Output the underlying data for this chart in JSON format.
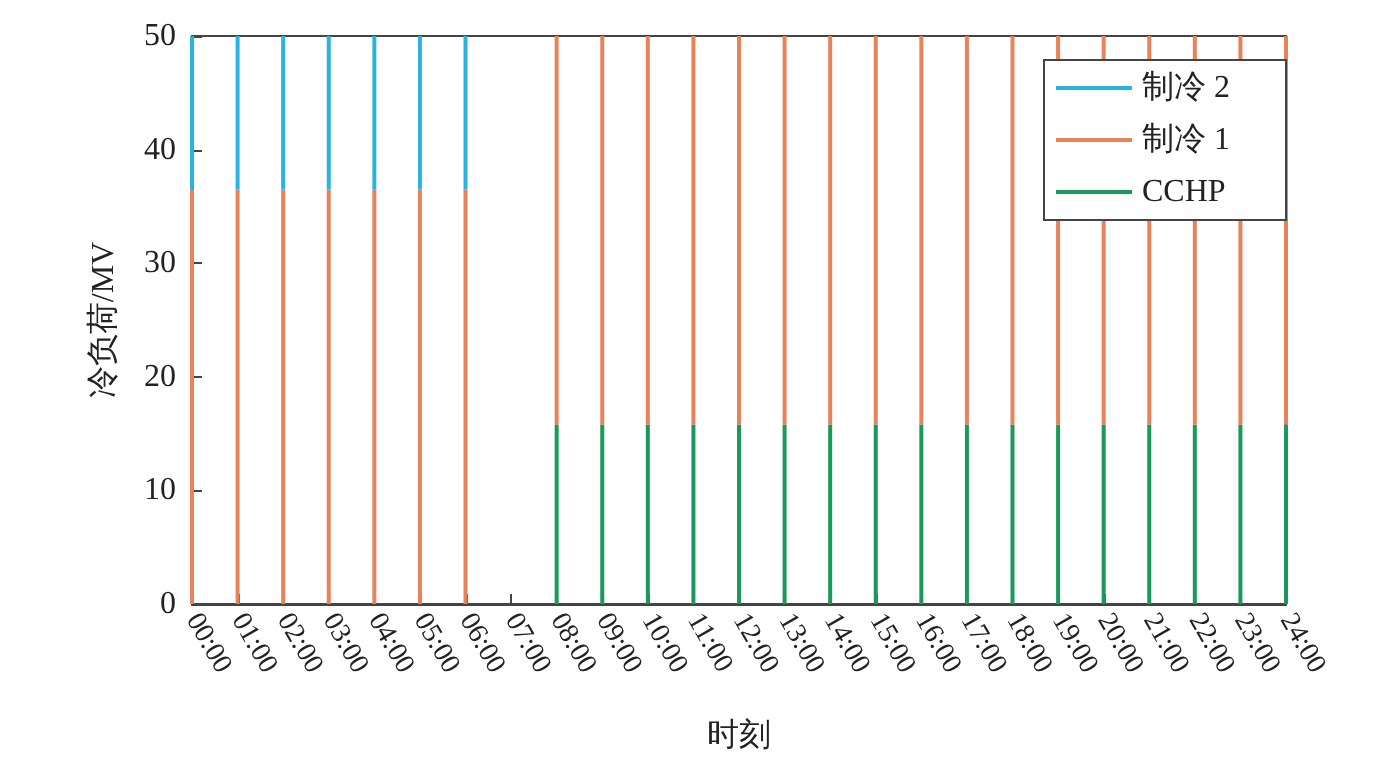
{
  "chart_data": {
    "type": "bar",
    "stacked": true,
    "xlabel": "时刻",
    "ylabel": "冷负荷/MV",
    "legend": "top right",
    "grid": false,
    "categories": [
      "00:00",
      "01:00",
      "02:00",
      "03:00",
      "04:00",
      "05:00",
      "06:00",
      "07:00",
      "08:00",
      "09:00",
      "10:00",
      "11:00",
      "12:00",
      "13:00",
      "14:00",
      "15:00",
      "16:00",
      "17:00",
      "18:00",
      "19:00",
      "20:00",
      "21:00",
      "22:00",
      "23:00",
      "24:00"
    ],
    "ylim": [
      0,
      50
    ],
    "yticks": [
      0,
      10,
      20,
      30,
      40,
      50
    ],
    "series": [
      {
        "name": "CCHP",
        "color": "#1a9a5a",
        "values": [
          0,
          0,
          0,
          0,
          0,
          0,
          0,
          0,
          15.8,
          15.8,
          15.8,
          15.8,
          15.8,
          15.8,
          15.8,
          15.8,
          15.8,
          15.8,
          15.8,
          15.8,
          15.8,
          15.8,
          15.8,
          15.8,
          15.8
        ]
      },
      {
        "name": "制冷 1",
        "color": "#e8825a",
        "values": [
          36.5,
          36.5,
          36.5,
          36.5,
          36.5,
          36.5,
          36.5,
          0,
          34.2,
          34.2,
          34.2,
          34.2,
          34.2,
          34.2,
          34.2,
          34.2,
          34.2,
          34.2,
          34.2,
          34.2,
          34.2,
          34.2,
          34.2,
          34.2,
          34.2
        ]
      },
      {
        "name": "制冷 2",
        "color": "#2bb3e0",
        "values": [
          13.5,
          13.5,
          13.5,
          13.5,
          13.5,
          13.5,
          13.5,
          0,
          0,
          0,
          0,
          0,
          0,
          0,
          0,
          0,
          0,
          0,
          0,
          0,
          0,
          0,
          0,
          0,
          0
        ]
      }
    ]
  }
}
